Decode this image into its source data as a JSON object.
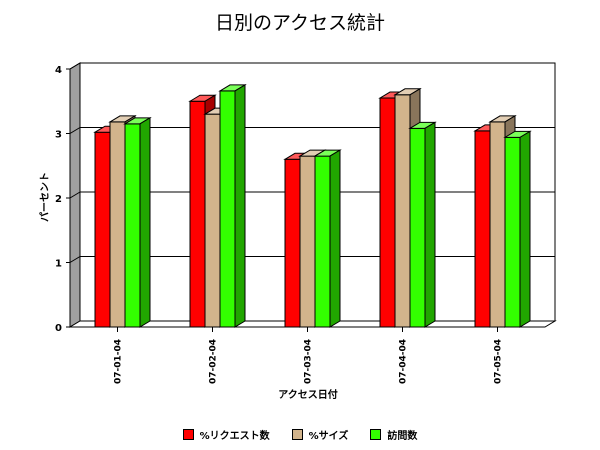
{
  "chart_data": {
    "type": "bar",
    "title": "日別のアクセス統計",
    "xlabel": "アクセス日付",
    "ylabel": "パーセント",
    "categories": [
      "07-01-04",
      "07-02-04",
      "07-03-04",
      "07-04-04",
      "07-05-04"
    ],
    "ylim": [
      0,
      4
    ],
    "yticks": [
      0,
      1,
      2,
      3,
      4
    ],
    "grid": true,
    "legend_position": "bottom",
    "series": [
      {
        "name": "%リクエスト数",
        "color": "#ff0000",
        "values": [
          3.02,
          3.5,
          2.6,
          3.55,
          3.04
        ]
      },
      {
        "name": "%サイズ",
        "color": "#d2b48c",
        "values": [
          3.18,
          3.3,
          2.65,
          3.6,
          3.18
        ]
      },
      {
        "name": "訪問数",
        "color": "#33ff00",
        "values": [
          3.15,
          3.66,
          2.65,
          3.08,
          2.94
        ]
      }
    ]
  }
}
